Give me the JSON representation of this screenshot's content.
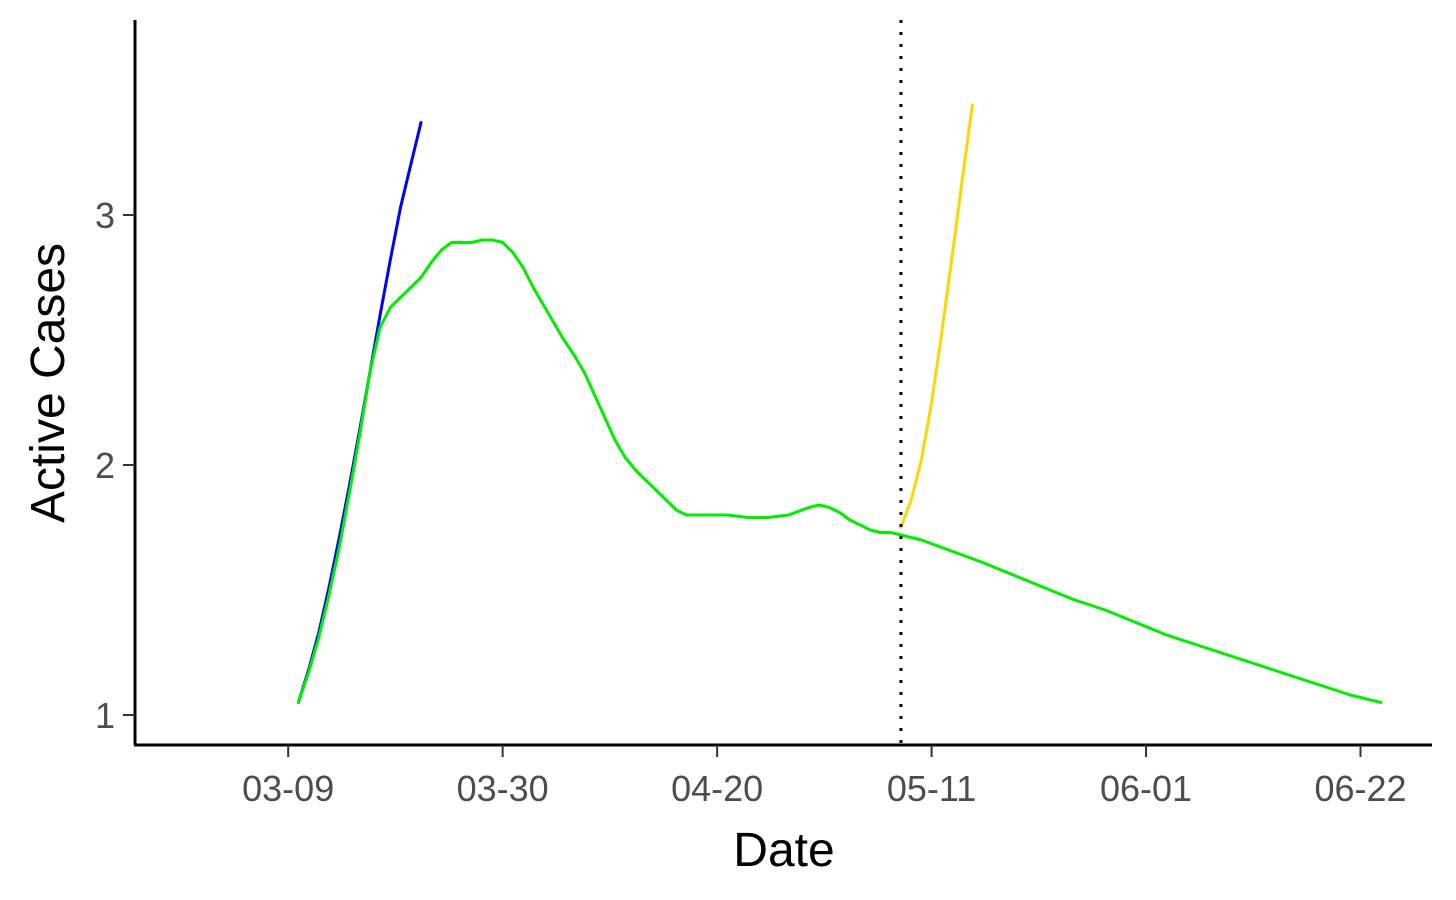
{
  "chart_data": {
    "type": "line",
    "title": "",
    "xlabel": "Date",
    "ylabel": "Active Cases",
    "x_is_date": true,
    "x_ticks": [
      "2020-03-09",
      "2020-03-30",
      "2020-04-20",
      "2020-05-11",
      "2020-06-01",
      "2020-06-22"
    ],
    "x_tick_labels": [
      "03-09",
      "03-30",
      "04-20",
      "05-11",
      "06-01",
      "06-22"
    ],
    "xlim": [
      "2020-02-23",
      "2020-06-29"
    ],
    "y_ticks": [
      1,
      2,
      3
    ],
    "ylim": [
      0.88,
      3.78
    ],
    "grid": false,
    "legend": "none",
    "vline": {
      "x": "2020-05-08",
      "style": "dotted",
      "color": "#000000"
    },
    "series": [
      {
        "color": "#0000ff",
        "x": [
          "2020-03-10",
          "2020-03-11",
          "2020-03-12",
          "2020-03-13",
          "2020-03-14",
          "2020-03-15",
          "2020-03-16",
          "2020-03-17",
          "2020-03-18",
          "2020-03-19",
          "2020-03-20",
          "2020-03-21",
          "2020-03-22"
        ],
        "y": [
          1.05,
          1.18,
          1.33,
          1.51,
          1.71,
          1.92,
          2.14,
          2.37,
          2.6,
          2.82,
          3.03,
          3.2,
          3.37
        ]
      },
      {
        "color": "#ffd700",
        "x": [
          "2020-05-08",
          "2020-05-09",
          "2020-05-10",
          "2020-05-11",
          "2020-05-12",
          "2020-05-13",
          "2020-05-14",
          "2020-05-15"
        ],
        "y": [
          1.75,
          1.86,
          2.02,
          2.25,
          2.53,
          2.83,
          3.14,
          3.44
        ]
      },
      {
        "color": "#00ee00",
        "x": [
          "2020-03-10",
          "2020-03-11",
          "2020-03-12",
          "2020-03-13",
          "2020-03-14",
          "2020-03-15",
          "2020-03-16",
          "2020-03-17",
          "2020-03-18",
          "2020-03-19",
          "2020-03-20",
          "2020-03-21",
          "2020-03-22",
          "2020-03-23",
          "2020-03-24",
          "2020-03-25",
          "2020-03-26",
          "2020-03-27",
          "2020-03-28",
          "2020-03-29",
          "2020-03-30",
          "2020-03-31",
          "2020-04-01",
          "2020-04-02",
          "2020-04-03",
          "2020-04-04",
          "2020-04-05",
          "2020-04-06",
          "2020-04-07",
          "2020-04-08",
          "2020-04-09",
          "2020-04-10",
          "2020-04-11",
          "2020-04-12",
          "2020-04-13",
          "2020-04-14",
          "2020-04-15",
          "2020-04-16",
          "2020-04-17",
          "2020-04-18",
          "2020-04-19",
          "2020-04-20",
          "2020-04-21",
          "2020-04-23",
          "2020-04-25",
          "2020-04-27",
          "2020-04-29",
          "2020-04-30",
          "2020-05-01",
          "2020-05-02",
          "2020-05-03",
          "2020-05-04",
          "2020-05-05",
          "2020-05-06",
          "2020-05-07",
          "2020-05-08",
          "2020-05-10",
          "2020-05-12",
          "2020-05-14",
          "2020-05-16",
          "2020-05-19",
          "2020-05-22",
          "2020-05-25",
          "2020-05-28",
          "2020-05-31",
          "2020-06-03",
          "2020-06-06",
          "2020-06-09",
          "2020-06-12",
          "2020-06-15",
          "2020-06-18",
          "2020-06-21",
          "2020-06-24"
        ],
        "y": [
          1.05,
          1.17,
          1.31,
          1.48,
          1.67,
          1.89,
          2.12,
          2.37,
          2.55,
          2.63,
          2.67,
          2.71,
          2.75,
          2.81,
          2.86,
          2.89,
          2.89,
          2.89,
          2.9,
          2.9,
          2.89,
          2.85,
          2.79,
          2.71,
          2.64,
          2.57,
          2.5,
          2.44,
          2.37,
          2.28,
          2.19,
          2.1,
          2.03,
          1.98,
          1.94,
          1.9,
          1.86,
          1.82,
          1.8,
          1.8,
          1.8,
          1.8,
          1.8,
          1.79,
          1.79,
          1.8,
          1.83,
          1.84,
          1.83,
          1.81,
          1.78,
          1.76,
          1.74,
          1.73,
          1.73,
          1.72,
          1.7,
          1.67,
          1.64,
          1.61,
          1.56,
          1.51,
          1.46,
          1.42,
          1.37,
          1.32,
          1.28,
          1.24,
          1.2,
          1.16,
          1.12,
          1.08,
          1.05
        ]
      }
    ]
  }
}
